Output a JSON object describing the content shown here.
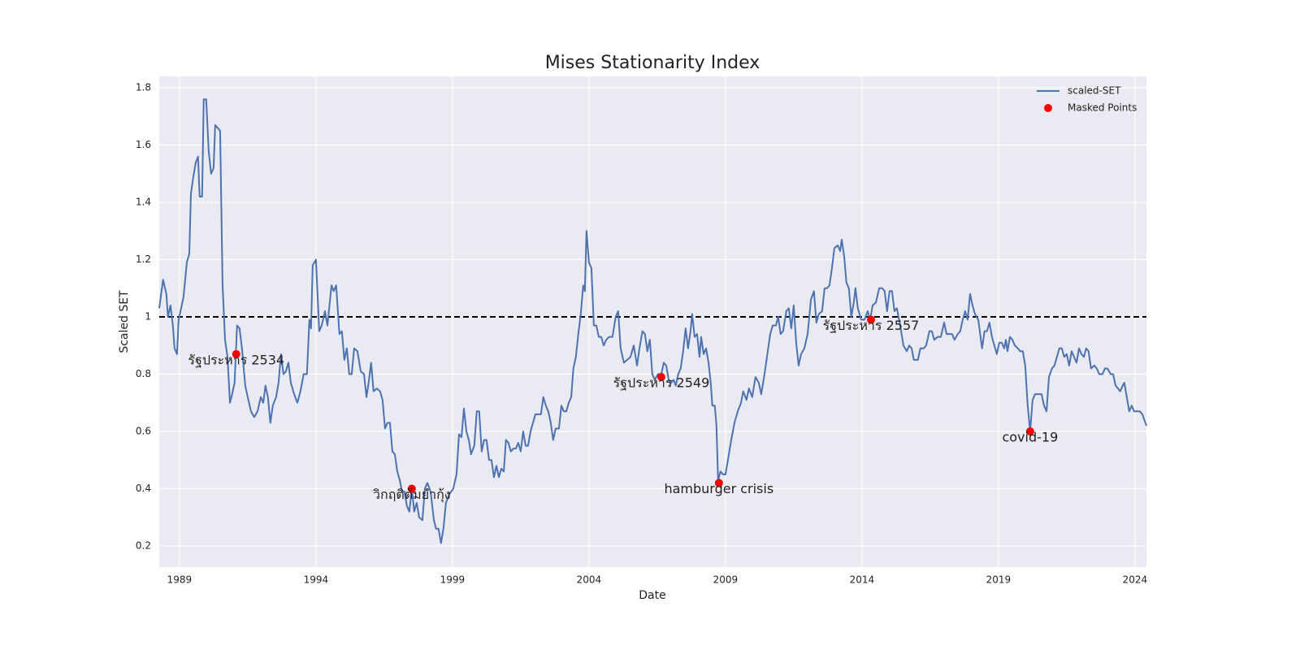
{
  "chart_data": {
    "type": "line",
    "title": "Mises Stationarity Index",
    "x_label": "Date",
    "y_label": "Scaled SET",
    "xlim": [
      1988.26,
      2024.42
    ],
    "ylim": [
      0.126,
      1.84
    ],
    "xticks": [
      1989,
      1994,
      1999,
      2004,
      2009,
      2014,
      2019,
      2024
    ],
    "yticks": [
      0.2,
      0.4,
      0.6,
      0.8,
      1.0,
      1.2,
      1.4,
      1.6,
      1.8
    ],
    "grid": true,
    "legend": "upper right",
    "reference_line": {
      "value": 1.0,
      "color": "#000000",
      "style": "dashed"
    },
    "series": [
      {
        "name": "scaled-SET",
        "color": "#4c72b0",
        "x": [
          1988.26,
          1988.4,
          1988.52,
          1988.58,
          1988.67,
          1988.76,
          1988.82,
          1988.91,
          1988.97,
          1989.15,
          1989.27,
          1989.36,
          1989.42,
          1989.51,
          1989.6,
          1989.68,
          1989.74,
          1989.83,
          1989.89,
          1989.98,
          1990.07,
          1990.16,
          1990.25,
          1990.31,
          1990.4,
          1990.49,
          1990.58,
          1990.67,
          1990.76,
          1990.85,
          1990.93,
          1991.02,
          1991.11,
          1991.2,
          1991.29,
          1991.41,
          1991.5,
          1991.62,
          1991.74,
          1991.86,
          1991.98,
          1992.07,
          1992.15,
          1992.24,
          1992.33,
          1992.42,
          1992.54,
          1992.63,
          1992.72,
          1992.81,
          1992.9,
          1992.99,
          1993.08,
          1993.2,
          1993.32,
          1993.43,
          1993.55,
          1993.67,
          1993.76,
          1993.82,
          1993.88,
          1994.0,
          1994.12,
          1994.21,
          1994.33,
          1994.42,
          1994.57,
          1994.65,
          1994.74,
          1994.86,
          1994.95,
          1995.04,
          1995.13,
          1995.22,
          1995.31,
          1995.4,
          1995.52,
          1995.64,
          1995.76,
          1995.85,
          1995.93,
          1996.02,
          1996.11,
          1996.23,
          1996.35,
          1996.44,
          1996.53,
          1996.62,
          1996.71,
          1996.8,
          1996.89,
          1996.98,
          1997.07,
          1997.15,
          1997.24,
          1997.33,
          1997.42,
          1997.51,
          1997.6,
          1997.69,
          1997.78,
          1997.9,
          1997.99,
          1998.08,
          1998.2,
          1998.32,
          1998.4,
          1998.49,
          1998.58,
          1998.67,
          1998.76,
          1998.88,
          1999.03,
          1999.15,
          1999.24,
          1999.33,
          1999.42,
          1999.51,
          1999.6,
          1999.68,
          1999.8,
          1999.89,
          1999.98,
          2000.07,
          2000.16,
          2000.25,
          2000.34,
          2000.43,
          2000.52,
          2000.61,
          2000.7,
          2000.79,
          2000.88,
          2000.96,
          2001.05,
          2001.14,
          2001.23,
          2001.32,
          2001.41,
          2001.5,
          2001.59,
          2001.68,
          2001.77,
          2001.86,
          2001.95,
          2002.04,
          2002.13,
          2002.24,
          2002.33,
          2002.42,
          2002.51,
          2002.6,
          2002.69,
          2002.78,
          2002.9,
          2002.99,
          2003.08,
          2003.17,
          2003.26,
          2003.35,
          2003.43,
          2003.52,
          2003.61,
          2003.7,
          2003.79,
          2003.85,
          2003.91,
          2004.0,
          2004.09,
          2004.18,
          2004.27,
          2004.36,
          2004.45,
          2004.54,
          2004.63,
          2004.74,
          2004.86,
          2004.98,
          2005.07,
          2005.16,
          2005.28,
          2005.4,
          2005.52,
          2005.64,
          2005.76,
          2005.85,
          2005.96,
          2006.05,
          2006.14,
          2006.23,
          2006.32,
          2006.41,
          2006.53,
          2006.65,
          2006.74,
          2006.83,
          2006.92,
          2007.01,
          2007.1,
          2007.18,
          2007.27,
          2007.36,
          2007.45,
          2007.54,
          2007.63,
          2007.72,
          2007.78,
          2007.87,
          2007.96,
          2008.05,
          2008.11,
          2008.2,
          2008.29,
          2008.38,
          2008.46,
          2008.52,
          2008.61,
          2008.67,
          2008.73,
          2008.82,
          2008.91,
          2009.0,
          2009.09,
          2009.21,
          2009.33,
          2009.45,
          2009.57,
          2009.65,
          2009.77,
          2009.86,
          2009.98,
          2010.1,
          2010.22,
          2010.31,
          2010.43,
          2010.52,
          2010.64,
          2010.73,
          2010.85,
          2010.93,
          2011.02,
          2011.11,
          2011.23,
          2011.32,
          2011.41,
          2011.5,
          2011.59,
          2011.68,
          2011.77,
          2011.89,
          2012.01,
          2012.13,
          2012.24,
          2012.33,
          2012.42,
          2012.54,
          2012.63,
          2012.72,
          2012.81,
          2012.9,
          2012.99,
          2013.11,
          2013.2,
          2013.26,
          2013.35,
          2013.43,
          2013.52,
          2013.61,
          2013.7,
          2013.76,
          2013.85,
          2013.97,
          2014.09,
          2014.21,
          2014.3,
          2014.39,
          2014.51,
          2014.63,
          2014.74,
          2014.83,
          2014.92,
          2015.01,
          2015.1,
          2015.19,
          2015.28,
          2015.4,
          2015.52,
          2015.64,
          2015.73,
          2015.82,
          2015.9,
          2016.05,
          2016.14,
          2016.26,
          2016.35,
          2016.47,
          2016.56,
          2016.65,
          2016.77,
          2016.89,
          2017.01,
          2017.1,
          2017.18,
          2017.3,
          2017.39,
          2017.51,
          2017.6,
          2017.69,
          2017.78,
          2017.87,
          2017.96,
          2018.05,
          2018.14,
          2018.26,
          2018.4,
          2018.49,
          2018.58,
          2018.67,
          2018.76,
          2018.85,
          2018.94,
          2019.03,
          2019.12,
          2019.21,
          2019.27,
          2019.33,
          2019.42,
          2019.51,
          2019.6,
          2019.71,
          2019.8,
          2019.89,
          2019.98,
          2020.07,
          2020.16,
          2020.25,
          2020.34,
          2020.46,
          2020.58,
          2020.67,
          2020.76,
          2020.85,
          2020.96,
          2021.05,
          2021.14,
          2021.23,
          2021.32,
          2021.41,
          2021.5,
          2021.59,
          2021.68,
          2021.77,
          2021.86,
          2021.95,
          2022.04,
          2022.13,
          2022.21,
          2022.3,
          2022.39,
          2022.51,
          2022.6,
          2022.69,
          2022.81,
          2022.9,
          2022.99,
          2023.11,
          2023.2,
          2023.29,
          2023.38,
          2023.46,
          2023.55,
          2023.61,
          2023.7,
          2023.79,
          2023.88,
          2023.97,
          2024.06,
          2024.18,
          2024.27,
          2024.42
        ],
        "values": [
          1.03,
          1.13,
          1.08,
          1.0,
          1.04,
          0.97,
          0.89,
          0.87,
          0.99,
          1.07,
          1.19,
          1.22,
          1.43,
          1.49,
          1.54,
          1.56,
          1.42,
          1.42,
          1.76,
          1.76,
          1.58,
          1.5,
          1.52,
          1.67,
          1.66,
          1.65,
          1.11,
          0.92,
          0.86,
          0.7,
          0.73,
          0.77,
          0.97,
          0.96,
          0.89,
          0.76,
          0.72,
          0.67,
          0.65,
          0.67,
          0.72,
          0.7,
          0.76,
          0.72,
          0.63,
          0.69,
          0.72,
          0.77,
          0.87,
          0.8,
          0.81,
          0.84,
          0.77,
          0.73,
          0.7,
          0.74,
          0.8,
          0.8,
          0.99,
          0.96,
          1.18,
          1.2,
          0.95,
          0.97,
          1.02,
          0.97,
          1.11,
          1.09,
          1.11,
          0.94,
          0.95,
          0.85,
          0.89,
          0.8,
          0.8,
          0.89,
          0.88,
          0.81,
          0.8,
          0.72,
          0.77,
          0.84,
          0.74,
          0.75,
          0.74,
          0.71,
          0.61,
          0.63,
          0.63,
          0.53,
          0.52,
          0.46,
          0.43,
          0.39,
          0.39,
          0.34,
          0.32,
          0.4,
          0.32,
          0.35,
          0.3,
          0.29,
          0.4,
          0.42,
          0.39,
          0.29,
          0.26,
          0.26,
          0.21,
          0.26,
          0.35,
          0.38,
          0.4,
          0.45,
          0.59,
          0.58,
          0.68,
          0.6,
          0.57,
          0.52,
          0.55,
          0.67,
          0.67,
          0.53,
          0.57,
          0.57,
          0.5,
          0.5,
          0.44,
          0.48,
          0.44,
          0.47,
          0.46,
          0.57,
          0.56,
          0.53,
          0.54,
          0.54,
          0.56,
          0.53,
          0.6,
          0.55,
          0.55,
          0.6,
          0.63,
          0.66,
          0.66,
          0.66,
          0.72,
          0.69,
          0.67,
          0.63,
          0.57,
          0.61,
          0.61,
          0.69,
          0.67,
          0.67,
          0.7,
          0.72,
          0.82,
          0.86,
          0.94,
          1.01,
          1.11,
          1.09,
          1.3,
          1.19,
          1.17,
          0.97,
          0.97,
          0.93,
          0.93,
          0.9,
          0.92,
          0.93,
          0.93,
          1.0,
          1.02,
          0.89,
          0.84,
          0.85,
          0.86,
          0.9,
          0.83,
          0.89,
          0.95,
          0.94,
          0.88,
          0.92,
          0.8,
          0.78,
          0.8,
          0.8,
          0.84,
          0.83,
          0.78,
          0.77,
          0.78,
          0.76,
          0.8,
          0.82,
          0.88,
          0.96,
          0.89,
          0.95,
          1.01,
          0.93,
          0.94,
          0.86,
          0.93,
          0.87,
          0.89,
          0.84,
          0.77,
          0.69,
          0.69,
          0.62,
          0.43,
          0.46,
          0.45,
          0.45,
          0.5,
          0.57,
          0.63,
          0.67,
          0.7,
          0.74,
          0.71,
          0.75,
          0.72,
          0.79,
          0.77,
          0.73,
          0.8,
          0.86,
          0.94,
          0.97,
          0.97,
          1.0,
          0.94,
          0.95,
          1.02,
          1.03,
          0.96,
          1.04,
          0.91,
          0.83,
          0.87,
          0.89,
          0.94,
          1.06,
          1.09,
          0.98,
          1.01,
          1.02,
          1.1,
          1.1,
          1.11,
          1.17,
          1.24,
          1.25,
          1.23,
          1.27,
          1.21,
          1.12,
          1.1,
          1.0,
          1.05,
          1.1,
          1.03,
          0.99,
          0.99,
          1.02,
          0.99,
          1.04,
          1.05,
          1.1,
          1.1,
          1.09,
          1.02,
          1.09,
          1.09,
          1.02,
          1.03,
          0.97,
          0.9,
          0.88,
          0.9,
          0.89,
          0.85,
          0.85,
          0.89,
          0.89,
          0.9,
          0.95,
          0.95,
          0.92,
          0.93,
          0.93,
          0.98,
          0.94,
          0.94,
          0.94,
          0.92,
          0.94,
          0.95,
          0.99,
          1.02,
          0.99,
          1.08,
          1.04,
          1.01,
          0.99,
          0.89,
          0.95,
          0.95,
          0.98,
          0.93,
          0.9,
          0.87,
          0.91,
          0.91,
          0.89,
          0.92,
          0.88,
          0.93,
          0.92,
          0.9,
          0.89,
          0.88,
          0.88,
          0.83,
          0.69,
          0.6,
          0.71,
          0.73,
          0.73,
          0.73,
          0.69,
          0.67,
          0.79,
          0.82,
          0.83,
          0.86,
          0.89,
          0.89,
          0.86,
          0.87,
          0.83,
          0.88,
          0.86,
          0.84,
          0.89,
          0.87,
          0.86,
          0.89,
          0.88,
          0.82,
          0.83,
          0.82,
          0.8,
          0.8,
          0.82,
          0.82,
          0.8,
          0.8,
          0.76,
          0.75,
          0.74,
          0.76,
          0.77,
          0.72,
          0.67,
          0.69,
          0.67,
          0.67,
          0.67,
          0.66,
          0.62
        ]
      },
      {
        "name": "Masked Points",
        "color": "#ff0000",
        "type": "scatter",
        "x": [
          1991.08,
          1997.51,
          2006.65,
          2008.76,
          2014.33,
          2020.16
        ],
        "values": [
          0.87,
          0.4,
          0.79,
          0.42,
          0.99,
          0.6
        ],
        "labels": [
          "รัฐประหาร 2534",
          "วิกฤติต้มยำกุ้ง",
          "รัฐประหาร 2549",
          "hamburger crisis",
          "รัฐประหาร 2557",
          "covid-19"
        ]
      }
    ]
  }
}
